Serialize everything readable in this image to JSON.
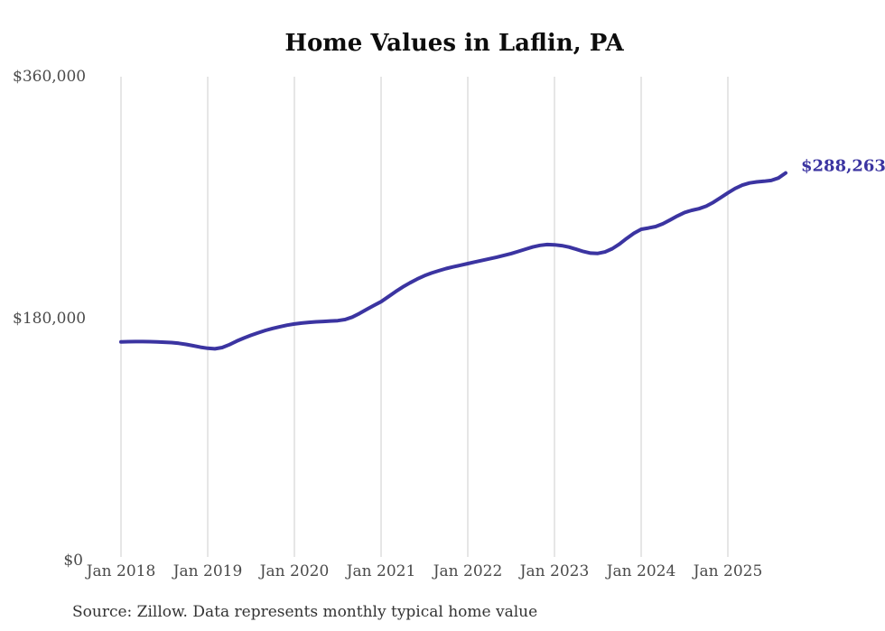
{
  "chart_data": {
    "type": "line",
    "title": "Home Values in Laflin, PA",
    "series_name": "Monthly typical home value",
    "x_start": "Jan 2018",
    "x_end": "Sep 2025",
    "x_frequency": "monthly",
    "xtick_labels": [
      "Jan 2018",
      "Jan 2019",
      "Jan 2020",
      "Jan 2021",
      "Jan 2022",
      "Jan 2023",
      "Jan 2024",
      "Jan 2025"
    ],
    "ytick_labels": [
      "$360,000",
      "$180,000",
      "$0"
    ],
    "ytick_values": [
      360000,
      180000,
      0
    ],
    "ylim": [
      0,
      360000
    ],
    "grid": "vertical-only",
    "legend": "none",
    "end_label": "$288,263",
    "final_value": 288263,
    "source": "Source: Zillow. Data represents monthly typical home value",
    "line_color": "#3b34a1",
    "grid_color": "#cccccc",
    "axis_text_color": "#4a4a4a",
    "values": [
      162300,
      162500,
      162600,
      162600,
      162500,
      162400,
      162100,
      161800,
      161300,
      160500,
      159500,
      158400,
      157600,
      157200,
      158100,
      160300,
      162900,
      165200,
      167300,
      169200,
      170900,
      172400,
      173700,
      174800,
      175700,
      176400,
      176900,
      177300,
      177600,
      177900,
      178200,
      179000,
      180800,
      183500,
      186500,
      189500,
      192300,
      196000,
      199800,
      203300,
      206400,
      209200,
      211700,
      213700,
      215400,
      217000,
      218300,
      219500,
      220700,
      221900,
      223100,
      224300,
      225500,
      226800,
      228200,
      229800,
      231500,
      233100,
      234300,
      234900,
      234700,
      234100,
      233000,
      231400,
      229700,
      228500,
      228300,
      229400,
      231800,
      235300,
      239500,
      243300,
      246300,
      247200,
      248300,
      250400,
      253200,
      256200,
      258800,
      260400,
      261600,
      263500,
      266400,
      269900,
      273400,
      276700,
      279200,
      280800,
      281600,
      282100,
      282700,
      284500,
      288263
    ]
  }
}
